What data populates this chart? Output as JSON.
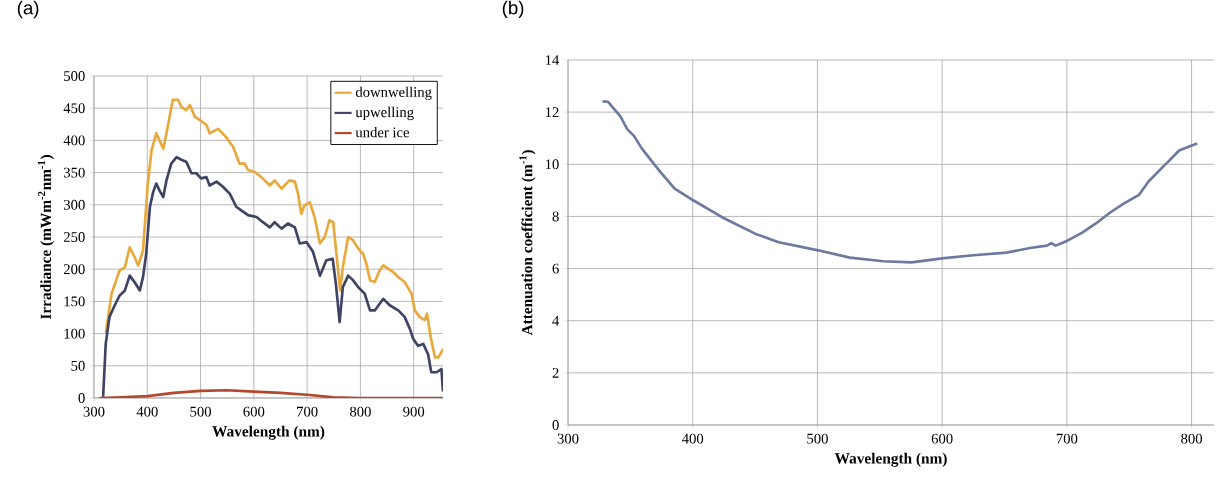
{
  "chart_data": [
    {
      "type": "line",
      "title": "(a)",
      "xlabel": "Wavelength (nm)",
      "ylabel": "Irradiance (mWm$^{-2}$nm$^{-1}$)",
      "xlim": [
        300,
        955
      ],
      "ylim": [
        0,
        500
      ],
      "xticks": [
        300,
        400,
        500,
        600,
        700,
        800,
        900
      ],
      "yticks": [
        0,
        50,
        100,
        150,
        200,
        250,
        300,
        350,
        400,
        450,
        500
      ],
      "grid": true,
      "legend": "top right",
      "marker": "none",
      "line_style": "solid",
      "series": [
        {
          "name": "downwelling",
          "color": "#e8a93c",
          "x": [
            322,
            333,
            348,
            358,
            367,
            376,
            383,
            392,
            401,
            408,
            417,
            423,
            430,
            436,
            448,
            458,
            464,
            473,
            480,
            489,
            498,
            511,
            517,
            533,
            548,
            561,
            573,
            583,
            589,
            602,
            614,
            630,
            639,
            652,
            667,
            677,
            683,
            689,
            695,
            705,
            714,
            724,
            733,
            742,
            749,
            755,
            762,
            767,
            777,
            786,
            796,
            805,
            811,
            818,
            827,
            836,
            843,
            852,
            861,
            871,
            883,
            896,
            902,
            911,
            921,
            925,
            932,
            940,
            946,
            952,
            955
          ],
          "values": [
            100,
            162,
            198,
            203,
            234,
            219,
            206,
            229,
            333,
            385,
            411,
            400,
            387,
            411,
            463,
            463,
            452,
            447,
            455,
            437,
            432,
            424,
            411,
            418,
            405,
            390,
            364,
            364,
            354,
            351,
            343,
            330,
            338,
            325,
            338,
            336,
            317,
            286,
            299,
            304,
            281,
            240,
            250,
            276,
            273,
            224,
            167,
            203,
            250,
            245,
            232,
            224,
            209,
            183,
            180,
            198,
            206,
            201,
            196,
            188,
            180,
            162,
            136,
            126,
            121,
            131,
            94,
            63,
            63,
            71,
            76
          ]
        },
        {
          "name": "upwelling",
          "color": "#3f4466",
          "x": [
            317,
            322,
            329,
            339,
            348,
            358,
            367,
            376,
            386,
            392,
            398,
            405,
            411,
            417,
            423,
            430,
            436,
            445,
            455,
            464,
            473,
            483,
            492,
            501,
            511,
            517,
            530,
            542,
            555,
            567,
            577,
            589,
            605,
            617,
            630,
            639,
            652,
            664,
            677,
            686,
            699,
            711,
            724,
            736,
            748,
            754,
            761,
            767,
            777,
            786,
            796,
            808,
            818,
            827,
            843,
            855,
            871,
            883,
            893,
            899,
            908,
            918,
            927,
            933,
            943,
            952,
            955
          ],
          "values": [
            0,
            84,
            126,
            144,
            159,
            167,
            190,
            180,
            167,
            188,
            224,
            297,
            320,
            333,
            322,
            312,
            338,
            364,
            374,
            370,
            367,
            349,
            349,
            341,
            343,
            330,
            336,
            328,
            317,
            297,
            291,
            284,
            281,
            273,
            265,
            273,
            263,
            271,
            265,
            240,
            242,
            227,
            190,
            214,
            216,
            177,
            118,
            172,
            190,
            183,
            172,
            162,
            136,
            136,
            154,
            144,
            136,
            126,
            107,
            92,
            81,
            84,
            68,
            40,
            40,
            45,
            10
          ]
        },
        {
          "name": "under ice",
          "color": "#b5472a",
          "x": [
            310,
            350,
            400,
            450,
            500,
            550,
            600,
            650,
            700,
            750,
            800,
            955
          ],
          "values": [
            0,
            1,
            3,
            8,
            11,
            12,
            10,
            8,
            5,
            1,
            0,
            0
          ]
        }
      ]
    },
    {
      "type": "line",
      "title": "(b)",
      "xlabel": "Wavelength (nm)",
      "ylabel": "Attenuation coefficient (m$^{-1}$)",
      "xlim": [
        300,
        818
      ],
      "ylim": [
        0,
        14
      ],
      "xticks": [
        300,
        400,
        500,
        600,
        700,
        800
      ],
      "yticks": [
        0,
        2,
        4,
        6,
        8,
        10,
        12,
        14
      ],
      "grid": true,
      "marker": "none",
      "line_style": "solid",
      "series": [
        {
          "color": "#6b7a9e",
          "x": [
            327.7,
            332,
            336,
            342,
            347.5,
            353,
            359,
            366.5,
            374,
            385.5,
            400.7,
            423.5,
            450,
            469,
            500.6,
            526,
            552.7,
            575.5,
            600,
            625,
            651.5,
            670.5,
            684,
            687.5,
            691,
            700,
            712,
            723.6,
            735,
            746.5,
            757.9,
            765.5,
            776.8,
            782.5,
            790,
            799.6,
            804.6
          ],
          "values": [
            12.41,
            12.4,
            12.17,
            11.84,
            11.35,
            11.08,
            10.62,
            10.16,
            9.71,
            9.07,
            8.61,
            7.97,
            7.34,
            7.01,
            6.7,
            6.42,
            6.28,
            6.24,
            6.39,
            6.51,
            6.61,
            6.79,
            6.88,
            6.97,
            6.88,
            7.06,
            7.37,
            7.74,
            8.16,
            8.52,
            8.83,
            9.34,
            9.89,
            10.16,
            10.53,
            10.71,
            10.8
          ]
        }
      ]
    }
  ]
}
